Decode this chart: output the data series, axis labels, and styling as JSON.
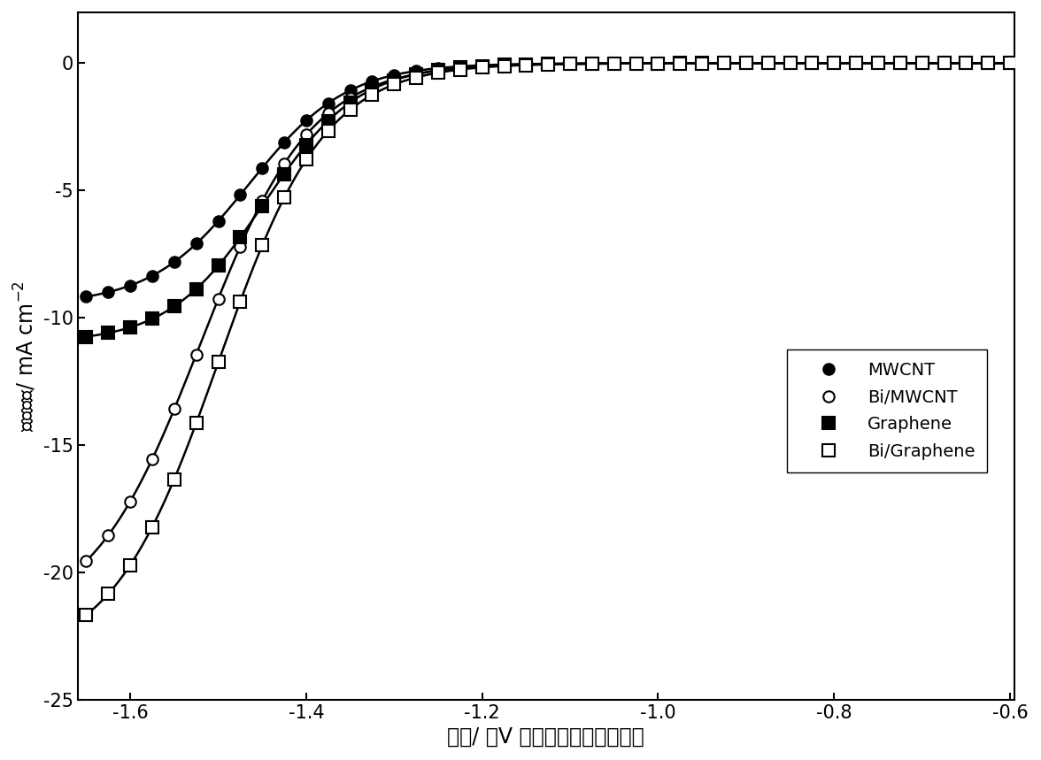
{
  "xlabel": "电位/ （V 相对于饱和甘汞电极）",
  "ylabel": "电流密度/ mA cm$^{-2}$",
  "xlim": [
    -1.66,
    -0.595
  ],
  "ylim": [
    -25,
    2
  ],
  "xticks": [
    -1.6,
    -1.4,
    -1.2,
    -1.0,
    -0.8,
    -0.6
  ],
  "yticks": [
    0,
    -5,
    -10,
    -15,
    -20,
    -25
  ],
  "background_color": "#ffffff",
  "axis_fontsize": 17,
  "tick_fontsize": 15,
  "legend_fontsize": 14,
  "series": [
    {
      "label": "MWCNT",
      "marker": "o",
      "filled": true,
      "color": "#000000",
      "Imax": -9.5,
      "x0": -1.465,
      "k": 18.0
    },
    {
      "label": "Bi/MWCNT",
      "marker": "o",
      "filled": false,
      "color": "#000000",
      "Imax": -22.0,
      "x0": -1.52,
      "k": 16.0
    },
    {
      "label": "Graphene",
      "marker": "s",
      "filled": true,
      "color": "#000000",
      "Imax": -11.0,
      "x0": -1.448,
      "k": 18.5
    },
    {
      "label": "Bi/Graphene",
      "marker": "s",
      "filled": false,
      "color": "#000000",
      "Imax": -23.5,
      "x0": -1.5,
      "k": 16.5
    }
  ]
}
